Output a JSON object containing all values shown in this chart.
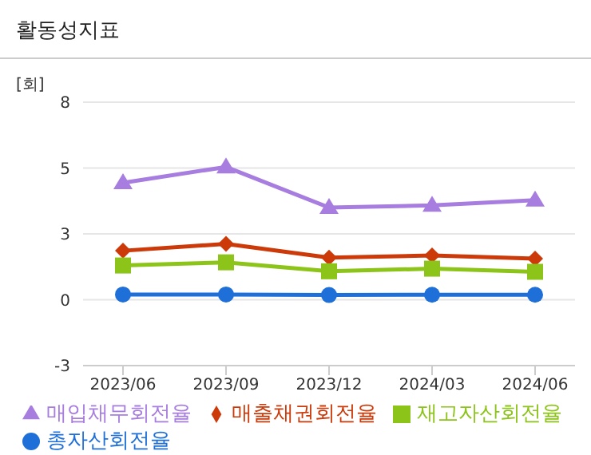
{
  "chart_data": {
    "type": "line",
    "title": "활동성지표",
    "ylabel": "[회]",
    "categories": [
      "2023/06",
      "2023/09",
      "2023/12",
      "2024/03",
      "2024/06"
    ],
    "series": [
      {
        "name": "총자산회전율",
        "color": "#1f6fd9",
        "marker": "circle",
        "values": [
          0.2,
          0.2,
          0.18,
          0.19,
          0.19
        ]
      },
      {
        "name": "매출채권회전율",
        "color": "#cc3a0a",
        "marker": "diamond",
        "values": [
          1.86,
          2.12,
          1.6,
          1.68,
          1.56
        ]
      },
      {
        "name": "재고자산회전율",
        "color": "#8cc41a",
        "marker": "square",
        "values": [
          1.3,
          1.42,
          1.08,
          1.18,
          1.06
        ]
      },
      {
        "name": "매입채무회전율",
        "color": "#a87de0",
        "marker": "triangle",
        "values": [
          4.44,
          5.04,
          3.5,
          3.58,
          3.78
        ]
      }
    ],
    "ylim": [
      -2.5,
      7.5
    ],
    "yticks": [
      {
        "value": -2.5,
        "label": "-3"
      },
      0,
      {
        "value": 2.5,
        "label": "3"
      },
      5,
      {
        "value": 7.5,
        "label": "8"
      }
    ],
    "grid": "y",
    "legend": "bottom",
    "line_style": "solid"
  }
}
